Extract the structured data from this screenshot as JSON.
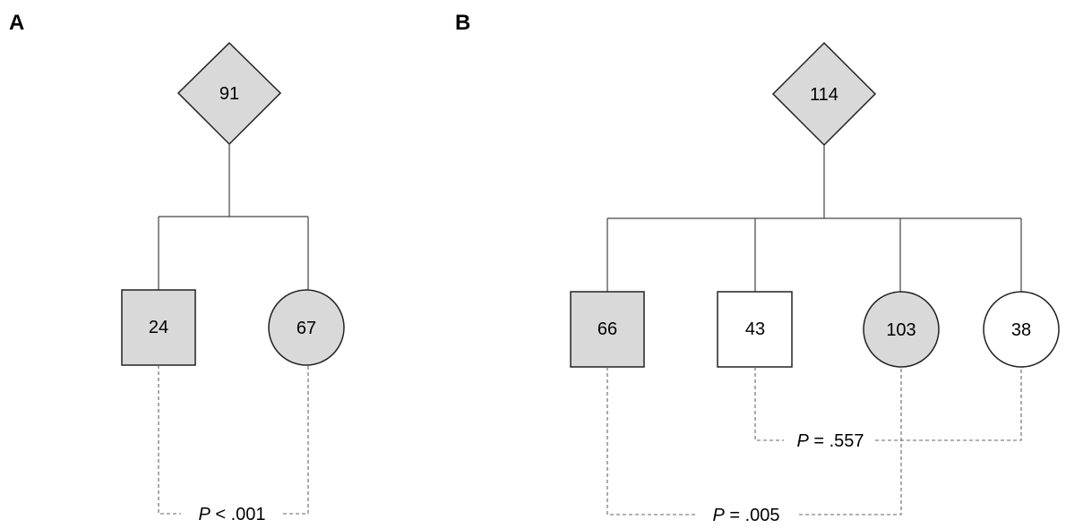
{
  "panels": {
    "a": {
      "label": "A",
      "root": {
        "value": "91",
        "fill": "#d9d9d9"
      },
      "nodes": [
        {
          "value": "24",
          "shape": "square",
          "fill": "#d9d9d9"
        },
        {
          "value": "67",
          "shape": "circle",
          "fill": "#d9d9d9"
        }
      ],
      "comparisons": [
        {
          "label": "P",
          "rest": " < .001"
        }
      ]
    },
    "b": {
      "label": "B",
      "root": {
        "value": "114",
        "fill": "#d9d9d9"
      },
      "nodes": [
        {
          "value": "66",
          "shape": "square",
          "fill": "#d9d9d9"
        },
        {
          "value": "43",
          "shape": "square",
          "fill": "#ffffff"
        },
        {
          "value": "103",
          "shape": "circle",
          "fill": "#d9d9d9"
        },
        {
          "value": "38",
          "shape": "circle",
          "fill": "#ffffff"
        }
      ],
      "comparisons": [
        {
          "label": "P",
          "rest": " = .557"
        },
        {
          "label": "P",
          "rest": " = .005"
        }
      ]
    }
  }
}
